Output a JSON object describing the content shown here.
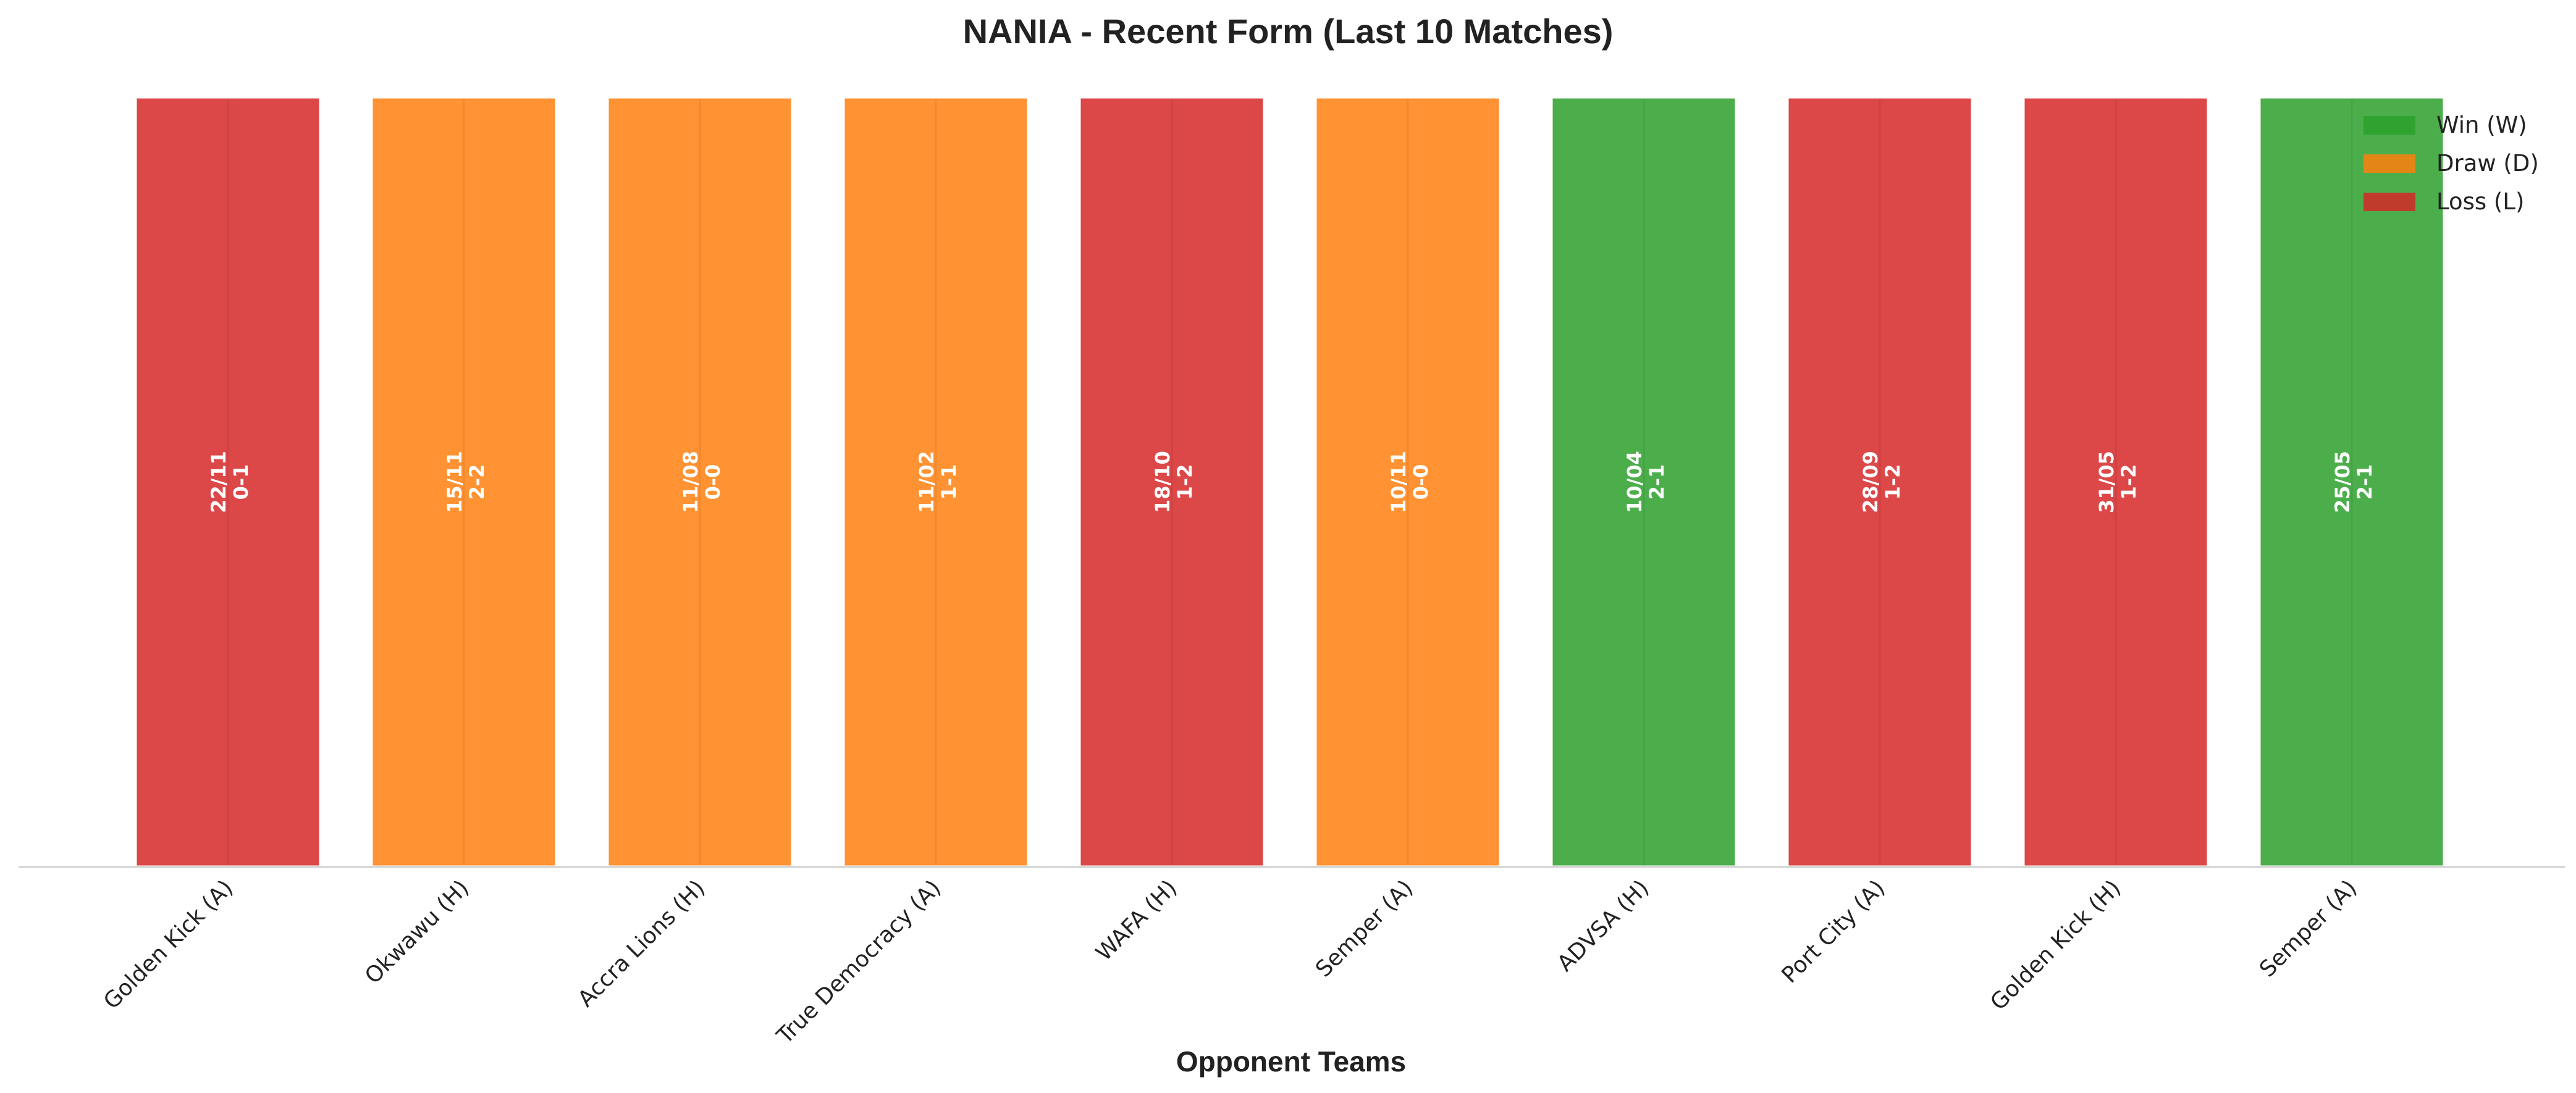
{
  "chart_data": {
    "type": "bar",
    "title": "NANIA - Recent Form (Last 10 Matches)",
    "xlabel": "Opponent Teams",
    "ylabel": "",
    "ylim": [
      0,
      1
    ],
    "grid": false,
    "legend_position": "top-right",
    "categories": [
      "Golden Kick (A)",
      "Okwawu (H)",
      "Accra Lions (H)",
      "True Democracy (A)",
      "WAFA (H)",
      "Semper (A)",
      "ADVSA (H)",
      "Port City (A)",
      "Golden Kick (H)",
      "Semper (A)"
    ],
    "values": [
      1,
      1,
      1,
      1,
      1,
      1,
      1,
      1,
      1,
      1
    ],
    "results": [
      "L",
      "D",
      "D",
      "D",
      "L",
      "D",
      "W",
      "L",
      "L",
      "W"
    ],
    "dates": [
      "22/11",
      "15/11",
      "11/08",
      "11/02",
      "18/10",
      "10/11",
      "10/04",
      "28/09",
      "31/05",
      "25/05"
    ],
    "scores": [
      "0-1",
      "2-2",
      "0-0",
      "1-1",
      "1-2",
      "0-0",
      "2-1",
      "1-2",
      "1-2",
      "2-1"
    ],
    "legend": [
      {
        "key": "W",
        "label": "Win (W)",
        "color": "#2ca02c"
      },
      {
        "key": "D",
        "label": "Draw (D)",
        "color": "#ff7f0e"
      },
      {
        "key": "L",
        "label": "Loss (L)",
        "color": "#d62728"
      }
    ]
  }
}
